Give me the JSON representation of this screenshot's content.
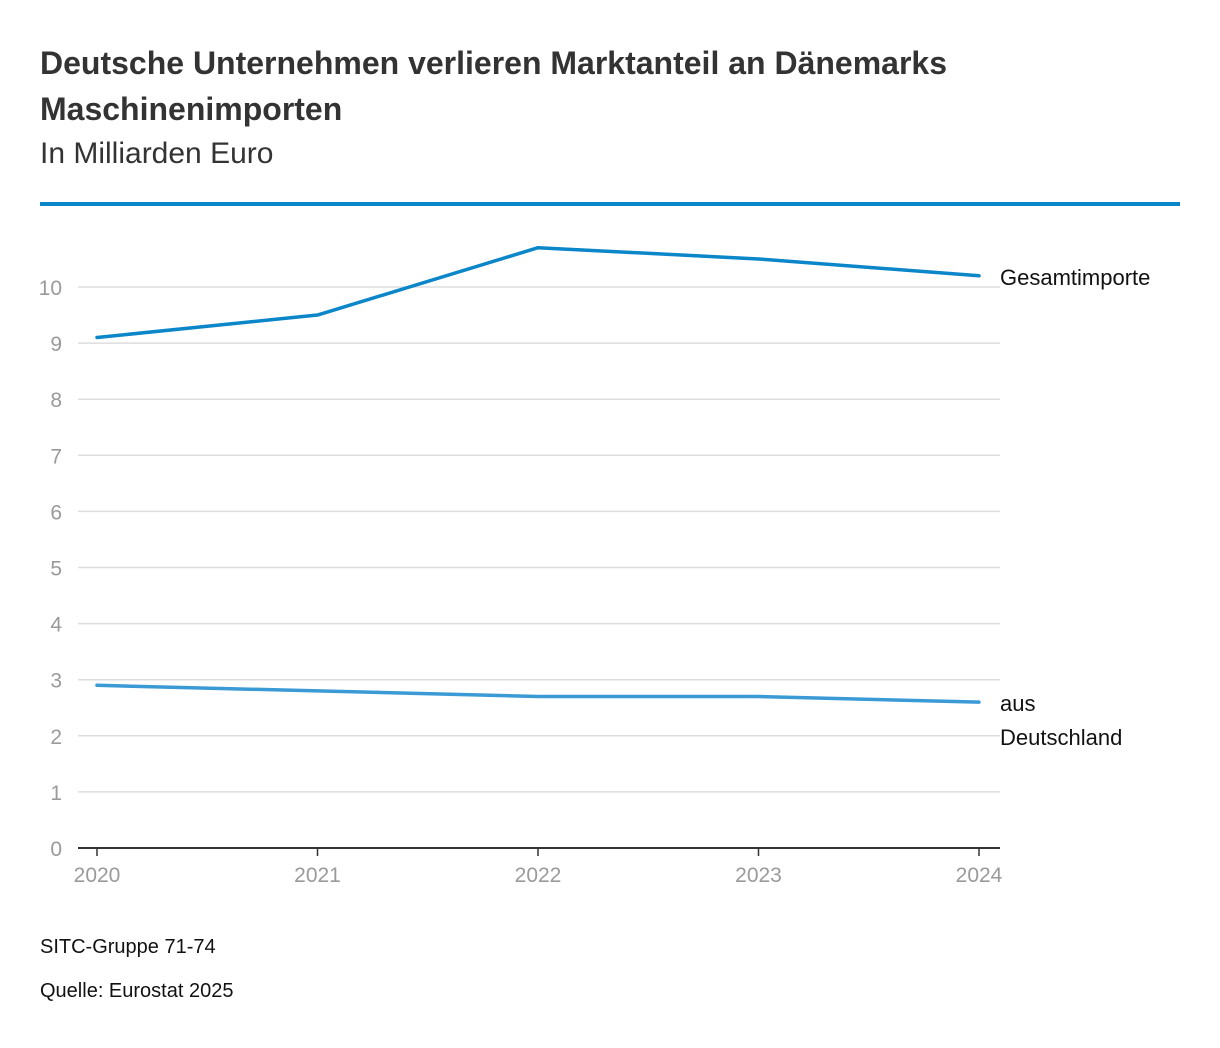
{
  "header": {
    "title": "Deutsche Unternehmen verlieren Marktanteil an Dänemarks Maschinenimporten",
    "subtitle": "In Milliarden Euro"
  },
  "footer": {
    "note": "SITC-Gruppe 71-74",
    "source": "Quelle: Eurostat 2025"
  },
  "colors": {
    "accent": "#0a86c9",
    "series_total": "#0a86c9",
    "series_germany": "#3a9ad6",
    "grid": "#dddddd",
    "axis": "#333333"
  },
  "chart_data": {
    "type": "line",
    "title": "Deutsche Unternehmen verlieren Marktanteil an Dänemarks Maschinenimporten",
    "subtitle": "In Milliarden Euro",
    "xlabel": "",
    "ylabel": "",
    "x": [
      "2020",
      "2021",
      "2022",
      "2023",
      "2024"
    ],
    "ylim": [
      0,
      11
    ],
    "yticks": [
      "0",
      "1",
      "2",
      "3",
      "4",
      "5",
      "6",
      "7",
      "8",
      "9",
      "10"
    ],
    "grid": true,
    "series": [
      {
        "name": "Gesamtimporte",
        "label_lines": [
          "Gesamtimporte"
        ],
        "values": [
          9.1,
          9.5,
          10.7,
          10.5,
          10.2
        ]
      },
      {
        "name": "aus Deutschland",
        "label_lines": [
          "aus",
          "Deutschland"
        ],
        "values": [
          2.9,
          2.8,
          2.7,
          2.7,
          2.6
        ]
      }
    ]
  }
}
